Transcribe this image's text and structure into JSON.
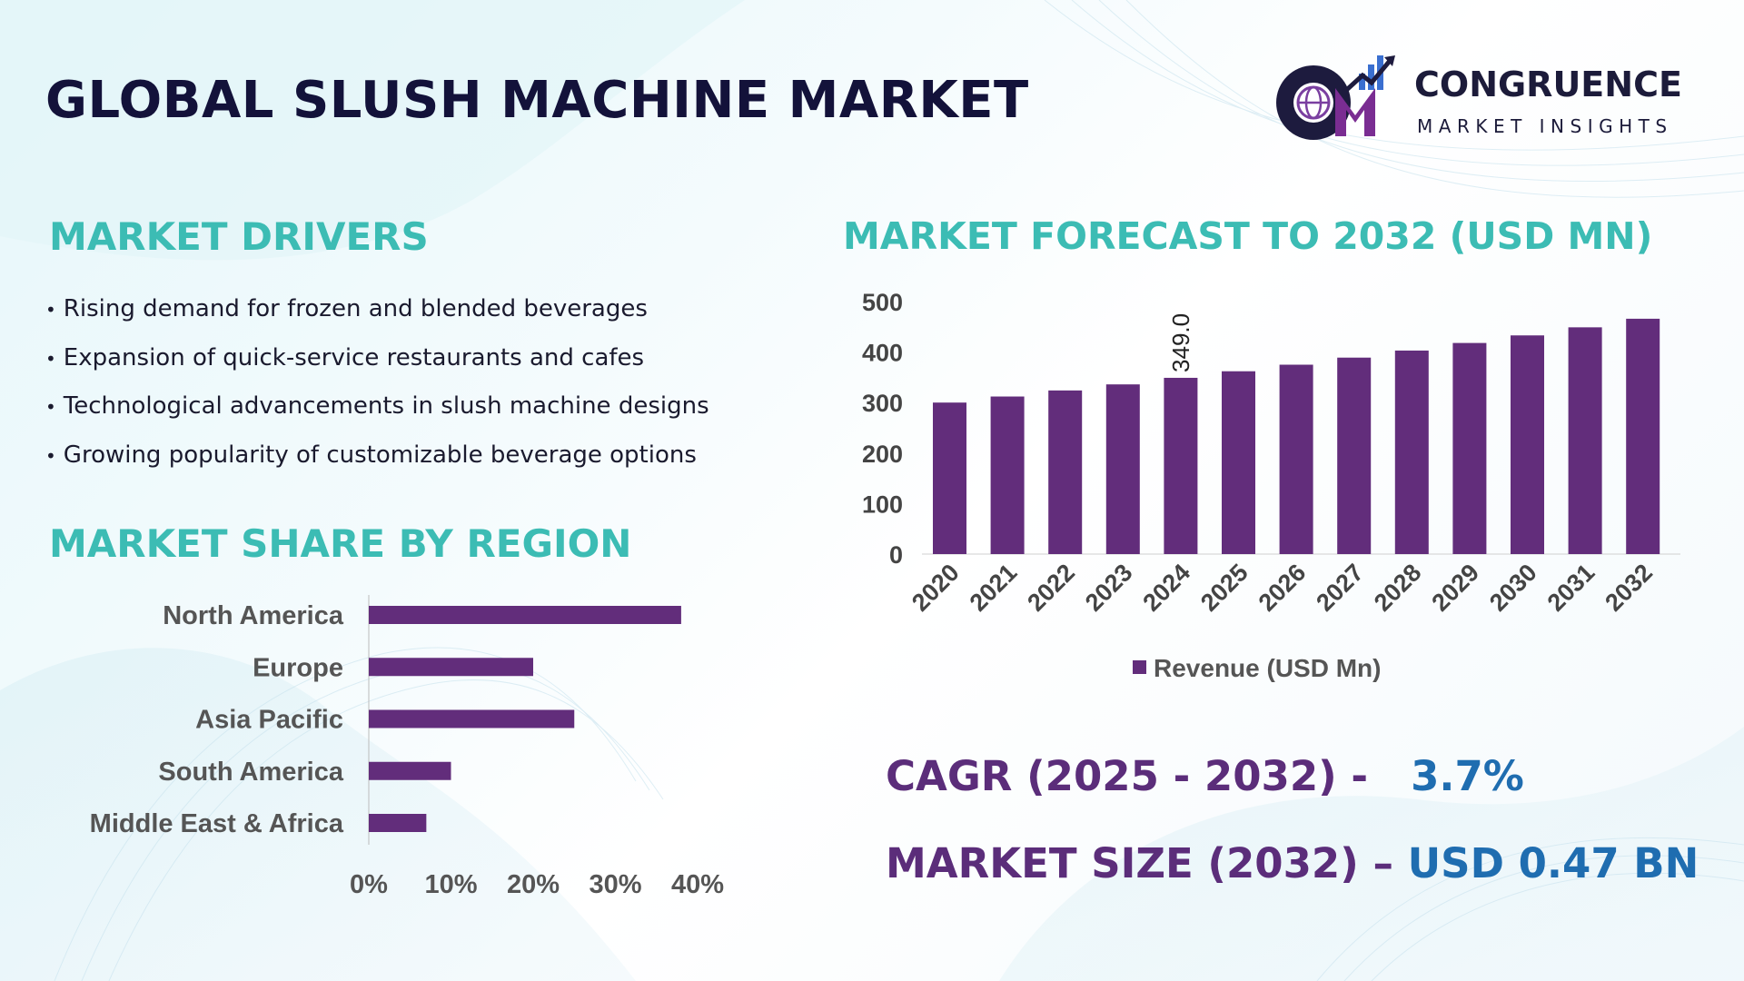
{
  "header": {
    "title": "GLOBAL SLUSH MACHINE MARKET"
  },
  "logo": {
    "name": "CONGRUENCE",
    "subtitle": "MARKET INSIGHTS",
    "icon": "cm-globe-growth-logo"
  },
  "drivers": {
    "title": "MARKET DRIVERS",
    "items": [
      "Rising demand for frozen and blended beverages",
      "Expansion of quick-service restaurants and cafes",
      "Technological advancements in slush machine designs",
      "Growing popularity of customizable beverage options"
    ]
  },
  "region": {
    "title": "MARKET SHARE BY REGION"
  },
  "forecast": {
    "title": "MARKET FORECAST TO 2032 (USD MN)"
  },
  "stats": {
    "cagr_label": "CAGR (2025 - 2032) -",
    "cagr_value": "3.7%",
    "size_label": "MARKET SIZE (2032) –",
    "size_value": "USD 0.47 BN"
  },
  "colors": {
    "bar": "#622d7b",
    "title_teal": "#3cbcb4",
    "stat_label": "#5b2d7a",
    "stat_value": "#1f6db0",
    "heading_dark": "#13123a"
  },
  "chart_data": [
    {
      "type": "bar",
      "orientation": "horizontal",
      "categories": [
        "North America",
        "Europe",
        "Asia Pacific",
        "South America",
        "Middle East & Africa"
      ],
      "values": [
        38,
        20,
        25,
        10,
        7
      ],
      "xlim": [
        0,
        40
      ],
      "xticks": [
        "0%",
        "10%",
        "20%",
        "30%",
        "40%"
      ],
      "grid": false,
      "legend": "none"
    },
    {
      "type": "bar",
      "categories": [
        "2020",
        "2021",
        "2022",
        "2023",
        "2024",
        "2025",
        "2026",
        "2027",
        "2028",
        "2029",
        "2030",
        "2031",
        "2032"
      ],
      "series": [
        {
          "name": "Revenue (USD Mn)",
          "values": [
            300,
            312,
            324,
            336,
            349,
            362,
            375,
            389,
            403,
            418,
            433,
            449,
            466
          ]
        }
      ],
      "data_labels": [
        {
          "index": 4,
          "text": "349.0"
        }
      ],
      "ylim": [
        0,
        500
      ],
      "yticks": [
        "0",
        "100",
        "200",
        "300",
        "400",
        "500"
      ],
      "grid": false,
      "legend": "bottom"
    }
  ]
}
